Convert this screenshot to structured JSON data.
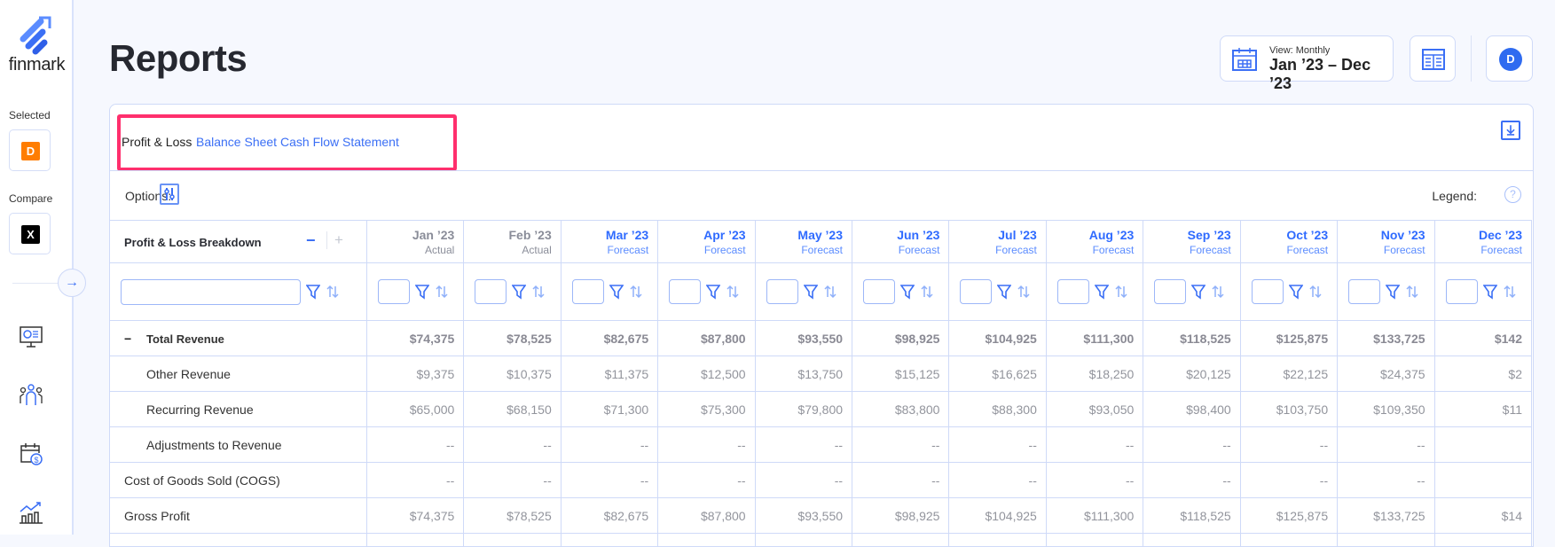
{
  "brand": "finmark",
  "sidebar": {
    "selected_label": "Selected",
    "selected_entity": "D",
    "compare_label": "Compare",
    "compare_entity": "X",
    "nav_icons": [
      "dashboard-icon",
      "team-icon",
      "calendar-dollar-icon",
      "chart-growth-icon"
    ],
    "selected_color": "#ff7d00",
    "compare_color": "#000000"
  },
  "header": {
    "title": "Reports",
    "view_label": "View: Monthly",
    "date_range": "Jan ’23 – Dec ’23",
    "avatar": "D"
  },
  "tabs": [
    {
      "label": "Profit & Loss",
      "active": true
    },
    {
      "label": "Balance Sheet",
      "active": false
    },
    {
      "label": "Cash Flow Statement",
      "active": false
    }
  ],
  "options_label": "Options:",
  "legend_label": "Legend:",
  "help": "?",
  "table": {
    "first_header": "Profit & Loss Breakdown",
    "collapse": "−",
    "expand": "+",
    "columns": [
      {
        "month": "Jan ’23",
        "type": "Actual"
      },
      {
        "month": "Feb ’23",
        "type": "Actual"
      },
      {
        "month": "Mar ’23",
        "type": "Forecast"
      },
      {
        "month": "Apr ’23",
        "type": "Forecast"
      },
      {
        "month": "May ’23",
        "type": "Forecast"
      },
      {
        "month": "Jun ’23",
        "type": "Forecast"
      },
      {
        "month": "Jul ’23",
        "type": "Forecast"
      },
      {
        "month": "Aug ’23",
        "type": "Forecast"
      },
      {
        "month": "Sep ’23",
        "type": "Forecast"
      },
      {
        "month": "Oct ’23",
        "type": "Forecast"
      },
      {
        "month": "Nov ’23",
        "type": "Forecast"
      },
      {
        "month": "Dec ’23",
        "type": "Forecast"
      }
    ],
    "rows": [
      {
        "label": "Total Revenue",
        "level": 0,
        "bold": true,
        "toggle": "−",
        "values": [
          "$74,375",
          "$78,525",
          "$82,675",
          "$87,800",
          "$93,550",
          "$98,925",
          "$104,925",
          "$111,300",
          "$118,525",
          "$125,875",
          "$133,725",
          "$142"
        ]
      },
      {
        "label": "Other Revenue",
        "level": 1,
        "values": [
          "$9,375",
          "$10,375",
          "$11,375",
          "$12,500",
          "$13,750",
          "$15,125",
          "$16,625",
          "$18,250",
          "$20,125",
          "$22,125",
          "$24,375",
          "$2"
        ]
      },
      {
        "label": "Recurring Revenue",
        "level": 1,
        "values": [
          "$65,000",
          "$68,150",
          "$71,300",
          "$75,300",
          "$79,800",
          "$83,800",
          "$88,300",
          "$93,050",
          "$98,400",
          "$103,750",
          "$109,350",
          "$11"
        ]
      },
      {
        "label": "Adjustments to Revenue",
        "level": 1,
        "values": [
          "--",
          "--",
          "--",
          "--",
          "--",
          "--",
          "--",
          "--",
          "--",
          "--",
          "--",
          ""
        ]
      },
      {
        "label": "Cost of Goods Sold (COGS)",
        "level": -1,
        "values": [
          "--",
          "--",
          "--",
          "--",
          "--",
          "--",
          "--",
          "--",
          "--",
          "--",
          "--",
          ""
        ]
      },
      {
        "label": "Gross Profit",
        "level": -1,
        "values": [
          "$74,375",
          "$78,525",
          "$82,675",
          "$87,800",
          "$93,550",
          "$98,925",
          "$104,925",
          "$111,300",
          "$118,525",
          "$125,875",
          "$133,725",
          "$14"
        ]
      },
      {
        "label": "",
        "level": -1,
        "values": [
          "",
          "",
          "",
          "",
          "",
          "",
          "",
          "",
          "",
          "",
          "",
          ""
        ]
      }
    ]
  },
  "colors": {
    "accent": "#2f6bf0",
    "forecast": "#2f6bff",
    "actual": "#8a8d99",
    "highlight": "#ff2f6d"
  }
}
